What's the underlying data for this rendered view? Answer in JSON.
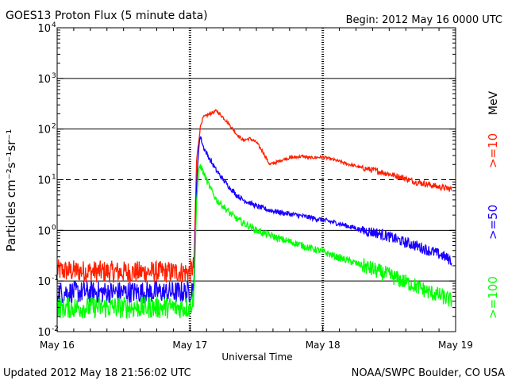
{
  "chart_data": {
    "type": "line",
    "title": "GOES13 Proton Flux (5 minute data)",
    "begin_label": "Begin: 2012 May 16 0000 UTC",
    "xlabel": "Universal Time",
    "ylabel": "Particles cm⁻²s⁻¹sr⁻¹",
    "units_label": "MeV",
    "updated": "Updated 2012 May 18 21:56:02 UTC",
    "credit": "NOAA/SWPC Boulder, CO USA",
    "x_unit": "days since 2012 May 16 0000 UTC",
    "xlim": [
      0,
      3
    ],
    "x_ticks": [
      {
        "value": 0,
        "label": "May 16"
      },
      {
        "value": 1,
        "label": "May 17"
      },
      {
        "value": 2,
        "label": "May 18"
      },
      {
        "value": 3,
        "label": "May 19"
      }
    ],
    "y_scale": "log",
    "ylim": [
      0.01,
      10000
    ],
    "y_ticks": [
      {
        "base": "10",
        "exp": "-2",
        "value": 0.01
      },
      {
        "base": "10",
        "exp": "-1",
        "value": 0.1
      },
      {
        "base": "10",
        "exp": "0",
        "value": 1
      },
      {
        "base": "10",
        "exp": "1",
        "value": 10
      },
      {
        "base": "10",
        "exp": "2",
        "value": 100
      },
      {
        "base": "10",
        "exp": "3",
        "value": 1000
      },
      {
        "base": "10",
        "exp": "4",
        "value": 10000
      }
    ],
    "solid_gridlines": [
      0.1,
      1,
      100,
      1000
    ],
    "dashed_gridlines": [
      10
    ],
    "series": [
      {
        "name": ">=10",
        "color": "#ff2000",
        "noisy": true,
        "x": [
          0.0,
          0.5,
          1.0,
          1.03,
          1.05,
          1.08,
          1.1,
          1.15,
          1.2,
          1.25,
          1.3,
          1.35,
          1.4,
          1.45,
          1.5,
          1.55,
          1.6,
          1.65,
          1.7,
          1.75,
          1.8,
          1.85,
          1.9,
          2.0,
          2.05,
          2.1,
          2.2,
          2.3,
          2.4,
          2.5,
          2.6,
          2.7,
          2.8,
          2.9,
          2.97
        ],
        "y": [
          0.16,
          0.15,
          0.15,
          0.2,
          25,
          120,
          170,
          200,
          230,
          170,
          120,
          80,
          60,
          65,
          55,
          35,
          20,
          22,
          25,
          27,
          28,
          29,
          27,
          28,
          26,
          24,
          20,
          17,
          15,
          13,
          11,
          9,
          8,
          7,
          6.5
        ]
      },
      {
        "name": ">=50",
        "color": "#1a00ff",
        "noisy": true,
        "x": [
          0.0,
          0.5,
          1.0,
          1.03,
          1.05,
          1.07,
          1.08,
          1.1,
          1.15,
          1.2,
          1.25,
          1.3,
          1.35,
          1.4,
          1.45,
          1.5,
          1.6,
          1.7,
          1.8,
          1.9,
          2.0,
          2.1,
          2.2,
          2.3,
          2.4,
          2.5,
          2.6,
          2.7,
          2.8,
          2.9,
          2.97
        ],
        "y": [
          0.06,
          0.06,
          0.06,
          0.08,
          8,
          60,
          70,
          45,
          25,
          15,
          10,
          7,
          5,
          4,
          3.5,
          3,
          2.5,
          2.2,
          2,
          1.8,
          1.6,
          1.4,
          1.2,
          1.0,
          0.9,
          0.75,
          0.6,
          0.5,
          0.4,
          0.32,
          0.25
        ]
      },
      {
        "name": ">=100",
        "color": "#00ff00",
        "noisy": true,
        "x": [
          0.0,
          0.5,
          1.0,
          1.03,
          1.05,
          1.07,
          1.08,
          1.1,
          1.15,
          1.2,
          1.25,
          1.3,
          1.35,
          1.4,
          1.45,
          1.5,
          1.6,
          1.7,
          1.8,
          1.9,
          2.0,
          2.1,
          2.2,
          2.3,
          2.4,
          2.5,
          2.6,
          2.7,
          2.8,
          2.9,
          2.97
        ],
        "y": [
          0.03,
          0.03,
          0.03,
          0.05,
          4,
          18,
          19,
          14,
          7,
          4,
          3,
          2.2,
          1.7,
          1.4,
          1.2,
          1.0,
          0.8,
          0.65,
          0.55,
          0.45,
          0.38,
          0.3,
          0.25,
          0.2,
          0.16,
          0.13,
          0.1,
          0.08,
          0.06,
          0.05,
          0.04
        ]
      }
    ]
  }
}
